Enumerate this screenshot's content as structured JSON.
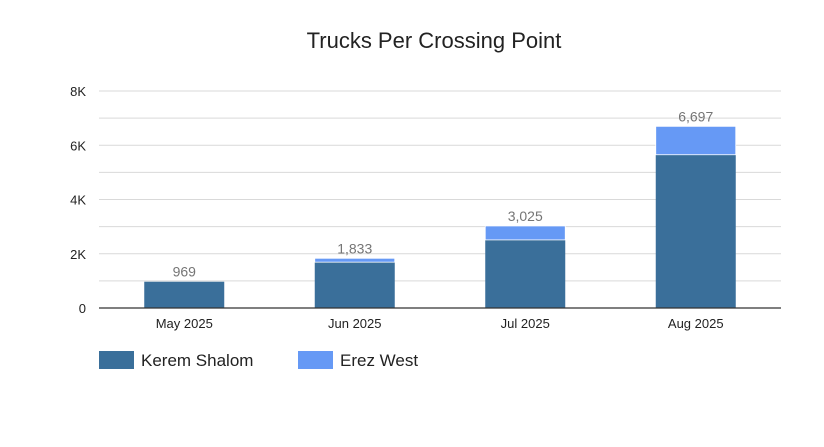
{
  "chart_data": {
    "type": "bar",
    "stacked": true,
    "title": "Trucks Per Crossing Point",
    "categories": [
      "May 2025",
      "Jun 2025",
      "Jul 2025",
      "Aug 2025"
    ],
    "series": [
      {
        "name": "Kerem Shalom",
        "color": "#3a6f9a",
        "values": [
          969,
          1690,
          2510,
          5650
        ]
      },
      {
        "name": "Erez West",
        "color": "#6699f5",
        "values": [
          0,
          143,
          515,
          1047
        ]
      }
    ],
    "totals": [
      "969",
      "1,833",
      "3,025",
      "6,697"
    ],
    "y_ticks": [
      0,
      2000,
      4000,
      6000,
      8000
    ],
    "y_tick_labels": [
      "0",
      "2K",
      "4K",
      "6K",
      "8K"
    ],
    "ylim": [
      0,
      8000
    ],
    "grid": true,
    "legend_position": "bottom-left"
  }
}
